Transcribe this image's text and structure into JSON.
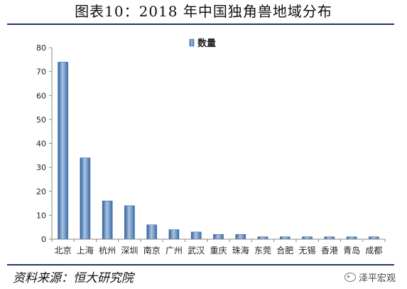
{
  "header": {
    "title": "图表10：2018 年中国独角兽地域分布"
  },
  "footer": {
    "source": "资料来源：恒大研究院",
    "watermark": "泽平宏观"
  },
  "colors": {
    "bar_light": "#a9c4e4",
    "bar_mid": "#5b8ac7",
    "bar_dark": "#2f5f9a",
    "rule": "#1f3864"
  },
  "chart_data": {
    "type": "bar",
    "title": "",
    "xlabel": "",
    "ylabel": "",
    "ylim": [
      0,
      80
    ],
    "yticks": [
      0,
      10,
      20,
      30,
      40,
      50,
      60,
      70,
      80
    ],
    "grid": false,
    "legend_position": "top",
    "categories": [
      "北京",
      "上海",
      "杭州",
      "深圳",
      "南京",
      "广州",
      "武汉",
      "重庆",
      "珠海",
      "东莞",
      "合肥",
      "无锡",
      "香港",
      "青岛",
      "成都"
    ],
    "series": [
      {
        "name": "数量",
        "values": [
          74,
          34,
          16,
          14,
          6,
          4,
          3,
          2,
          2,
          1,
          1,
          1,
          1,
          1,
          1
        ]
      }
    ]
  }
}
